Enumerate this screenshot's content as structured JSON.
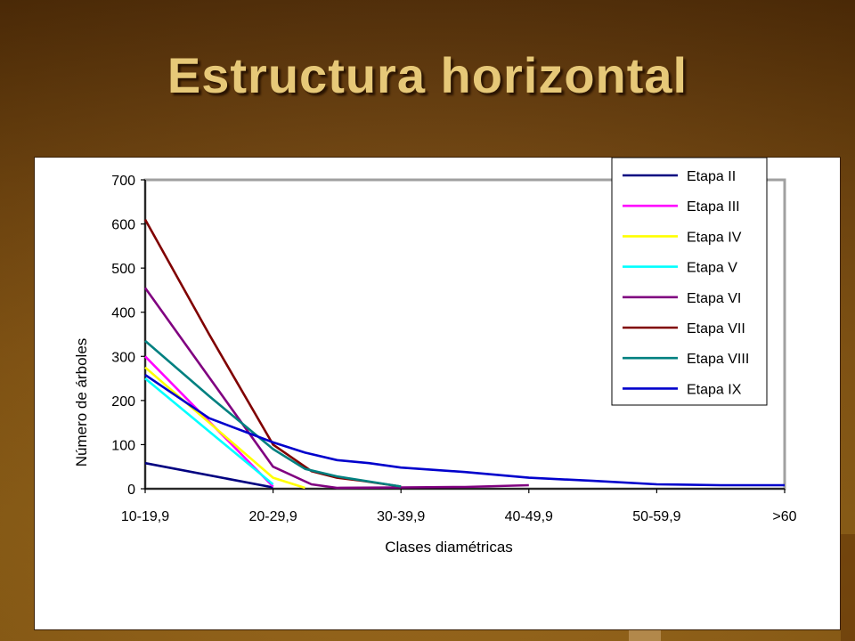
{
  "slide": {
    "title": "Estructura horizontal"
  },
  "chart_data": {
    "type": "line",
    "title": "",
    "xlabel": "Clases diamétricas",
    "ylabel": "Número de árboles",
    "ylim": [
      0,
      700
    ],
    "yticks": [
      0,
      100,
      200,
      300,
      400,
      500,
      600,
      700
    ],
    "categories": [
      "10-19,9",
      "20-29,9",
      "30-39,9",
      "40-49,9",
      "50-59,9",
      ">60"
    ],
    "grid": false,
    "legend": "top-right",
    "series": [
      {
        "name": "Etapa II",
        "color": "#000080",
        "points": [
          [
            0,
            58
          ],
          [
            1,
            3
          ]
        ]
      },
      {
        "name": "Etapa III",
        "color": "#ff00ff",
        "points": [
          [
            0,
            300
          ],
          [
            1,
            5
          ]
        ]
      },
      {
        "name": "Etapa IV",
        "color": "#ffff00",
        "points": [
          [
            0,
            275
          ],
          [
            1,
            25
          ],
          [
            1.25,
            2
          ]
        ]
      },
      {
        "name": "Etapa V",
        "color": "#00ffff",
        "points": [
          [
            0,
            250
          ],
          [
            1,
            10
          ]
        ]
      },
      {
        "name": "Etapa VI",
        "color": "#800080",
        "points": [
          [
            0,
            455
          ],
          [
            1,
            50
          ],
          [
            1.3,
            10
          ],
          [
            1.5,
            2
          ],
          [
            2,
            3
          ],
          [
            2.5,
            4
          ],
          [
            3,
            8
          ]
        ]
      },
      {
        "name": "Etapa VII",
        "color": "#800000",
        "points": [
          [
            0,
            610
          ],
          [
            0.5,
            350
          ],
          [
            1,
            100
          ],
          [
            1.3,
            40
          ],
          [
            1.5,
            25
          ],
          [
            1.7,
            18
          ],
          [
            2,
            5
          ]
        ]
      },
      {
        "name": "Etapa VIII",
        "color": "#008080",
        "points": [
          [
            0,
            335
          ],
          [
            0.5,
            210
          ],
          [
            1,
            90
          ],
          [
            1.25,
            45
          ],
          [
            1.5,
            28
          ],
          [
            2,
            5
          ]
        ]
      },
      {
        "name": "Etapa IX",
        "color": "#0000cc",
        "points": [
          [
            0,
            258
          ],
          [
            0.5,
            160
          ],
          [
            1,
            105
          ],
          [
            1.25,
            82
          ],
          [
            1.5,
            65
          ],
          [
            1.75,
            58
          ],
          [
            2,
            48
          ],
          [
            2.5,
            38
          ],
          [
            3,
            25
          ],
          [
            3.5,
            18
          ],
          [
            4,
            10
          ],
          [
            4.5,
            8
          ],
          [
            5,
            8
          ]
        ]
      }
    ]
  }
}
